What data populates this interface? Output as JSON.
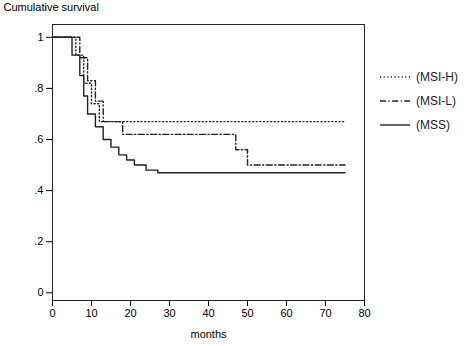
{
  "chart_data": {
    "type": "step",
    "xlabel": "months",
    "ylabel": "Cumulative survival",
    "xlim": [
      0,
      80
    ],
    "ylim": [
      -0.03,
      1.05
    ],
    "xticks": [
      0,
      10,
      20,
      30,
      40,
      50,
      60,
      70,
      80
    ],
    "yticks": [
      0,
      {
        "value": 0.2,
        "label": ".2"
      },
      {
        "value": 0.4,
        "label": ".4"
      },
      {
        "value": 0.6,
        "label": ".6"
      },
      {
        "value": 0.8,
        "label": ".8"
      },
      1
    ],
    "grid": false,
    "legend": "right",
    "series": [
      {
        "name": "(MSI-H)",
        "color": "#222222",
        "line_style": "dotted",
        "x": [
          0,
          6,
          6,
          8,
          8,
          10,
          10,
          12,
          12,
          75
        ],
        "values": [
          1.0,
          1.0,
          0.93,
          0.93,
          0.82,
          0.82,
          0.74,
          0.74,
          0.67,
          0.67
        ]
      },
      {
        "name": "(MSI-L)",
        "color": "#222222",
        "line_style": "dashdot",
        "x": [
          0,
          7,
          7,
          9,
          9,
          11,
          11,
          13,
          13,
          18,
          18,
          44,
          44,
          47,
          47,
          50,
          50,
          75
        ],
        "values": [
          1.0,
          1.0,
          0.92,
          0.92,
          0.83,
          0.83,
          0.75,
          0.75,
          0.67,
          0.67,
          0.62,
          0.62,
          0.62,
          0.62,
          0.56,
          0.56,
          0.5,
          0.5
        ]
      },
      {
        "name": "(MSS)",
        "color": "#222222",
        "line_style": "solid",
        "x": [
          0,
          5,
          5,
          7,
          7,
          8,
          8,
          9,
          9,
          11,
          11,
          13,
          13,
          15,
          15,
          17,
          17,
          19,
          19,
          21,
          21,
          24,
          24,
          27,
          27,
          33,
          33,
          75
        ],
        "values": [
          1.0,
          1.0,
          0.93,
          0.93,
          0.85,
          0.85,
          0.77,
          0.77,
          0.7,
          0.7,
          0.65,
          0.65,
          0.6,
          0.6,
          0.57,
          0.57,
          0.54,
          0.54,
          0.52,
          0.52,
          0.5,
          0.5,
          0.48,
          0.48,
          0.47,
          0.47,
          0.47,
          0.47
        ]
      }
    ]
  }
}
